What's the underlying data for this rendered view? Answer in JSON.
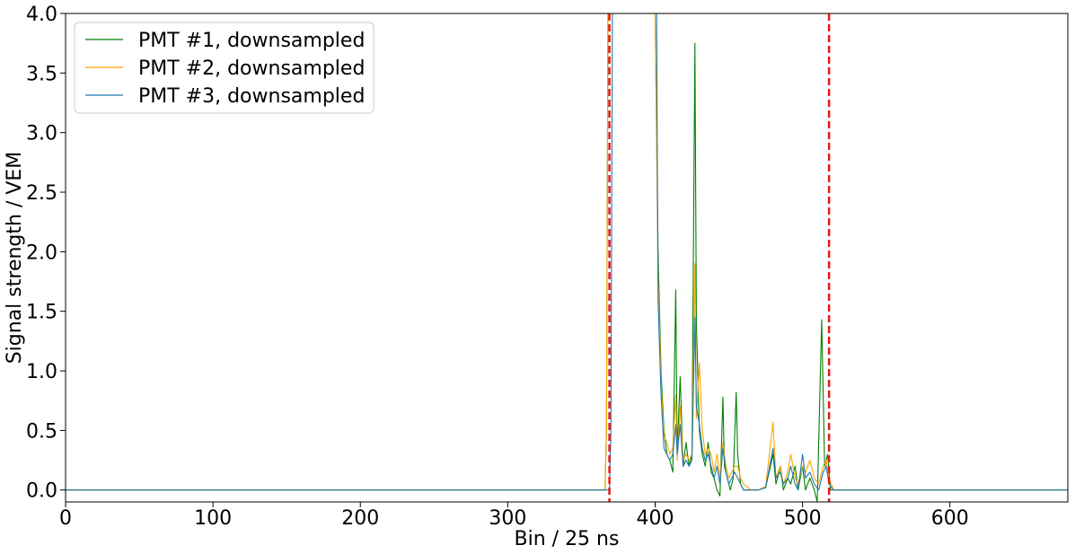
{
  "chart_data": {
    "type": "line",
    "xlabel": "Bin / 25 ns",
    "ylabel": "Signal strength / VEM",
    "xlim": [
      0,
      680
    ],
    "ylim": [
      -0.1,
      4.0
    ],
    "x_ticks": [
      0,
      100,
      200,
      300,
      400,
      500,
      600
    ],
    "x_tick_labels": [
      "0",
      "100",
      "200",
      "300",
      "400",
      "500",
      "600"
    ],
    "y_ticks": [
      0.0,
      0.5,
      1.0,
      1.5,
      2.0,
      2.5,
      3.0,
      3.5,
      4.0
    ],
    "y_tick_labels": [
      "0.0",
      "0.5",
      "1.0",
      "1.5",
      "2.0",
      "2.5",
      "3.0",
      "3.5",
      "4.0"
    ],
    "grid": false,
    "legend_position": "top-left",
    "vlines": [
      {
        "x": 369,
        "color": "#e41a1c",
        "style": "dashed"
      },
      {
        "x": 518,
        "color": "#e41a1c",
        "style": "dashed"
      }
    ],
    "series": [
      {
        "name": "PMT #1, downsampled",
        "color": "#008000",
        "points": [
          [
            0,
            0.0
          ],
          [
            366,
            0.0
          ],
          [
            367,
            0.5
          ],
          [
            368,
            4.0
          ],
          [
            370,
            4.0
          ],
          [
            396,
            4.0
          ],
          [
            400,
            4.0
          ],
          [
            402,
            2.0
          ],
          [
            404,
            1.0
          ],
          [
            406,
            0.5
          ],
          [
            408,
            0.3
          ],
          [
            410,
            0.25
          ],
          [
            412,
            0.15
          ],
          [
            414,
            1.68
          ],
          [
            415,
            0.3
          ],
          [
            417,
            0.95
          ],
          [
            419,
            0.2
          ],
          [
            421,
            0.4
          ],
          [
            423,
            0.2
          ],
          [
            425,
            0.3
          ],
          [
            427,
            3.75
          ],
          [
            428,
            1.4
          ],
          [
            430,
            0.5
          ],
          [
            432,
            0.3
          ],
          [
            434,
            0.2
          ],
          [
            436,
            0.4
          ],
          [
            438,
            0.15
          ],
          [
            440,
            0.1
          ],
          [
            442,
            0.0
          ],
          [
            444,
            -0.05
          ],
          [
            446,
            0.78
          ],
          [
            447,
            0.2
          ],
          [
            449,
            0.1
          ],
          [
            451,
            0.0
          ],
          [
            453,
            0.1
          ],
          [
            455,
            0.82
          ],
          [
            456,
            0.3
          ],
          [
            458,
            0.05
          ],
          [
            460,
            0.0
          ],
          [
            465,
            0.0
          ],
          [
            470,
            0.0
          ],
          [
            475,
            0.02
          ],
          [
            480,
            0.3
          ],
          [
            482,
            0.05
          ],
          [
            485,
            0.2
          ],
          [
            487,
            0.0
          ],
          [
            490,
            0.1
          ],
          [
            492,
            0.05
          ],
          [
            495,
            0.2
          ],
          [
            497,
            0.0
          ],
          [
            500,
            0.2
          ],
          [
            502,
            0.0
          ],
          [
            505,
            0.1
          ],
          [
            508,
            0.0
          ],
          [
            510,
            -0.1
          ],
          [
            513,
            1.43
          ],
          [
            515,
            0.2
          ],
          [
            517,
            0.3
          ],
          [
            519,
            0.0
          ],
          [
            522,
            0.0
          ],
          [
            680,
            0.0
          ]
        ]
      },
      {
        "name": "PMT #2, downsampled",
        "color": "#ffa500",
        "points": [
          [
            0,
            0.0
          ],
          [
            366,
            0.0
          ],
          [
            367,
            0.5
          ],
          [
            368,
            4.0
          ],
          [
            370,
            4.0
          ],
          [
            396,
            4.0
          ],
          [
            400,
            4.0
          ],
          [
            402,
            1.8
          ],
          [
            404,
            0.9
          ],
          [
            406,
            0.45
          ],
          [
            408,
            0.4
          ],
          [
            410,
            0.3
          ],
          [
            412,
            0.35
          ],
          [
            414,
            0.8
          ],
          [
            415,
            0.25
          ],
          [
            417,
            0.7
          ],
          [
            419,
            0.25
          ],
          [
            421,
            0.3
          ],
          [
            423,
            0.25
          ],
          [
            425,
            0.3
          ],
          [
            427,
            1.9
          ],
          [
            428,
            0.6
          ],
          [
            430,
            1.07
          ],
          [
            432,
            0.5
          ],
          [
            434,
            0.3
          ],
          [
            436,
            0.35
          ],
          [
            438,
            0.3
          ],
          [
            440,
            0.15
          ],
          [
            442,
            0.3
          ],
          [
            444,
            0.1
          ],
          [
            446,
            0.4
          ],
          [
            448,
            0.2
          ],
          [
            450,
            0.1
          ],
          [
            452,
            0.15
          ],
          [
            454,
            0.2
          ],
          [
            456,
            0.2
          ],
          [
            458,
            0.1
          ],
          [
            460,
            0.05
          ],
          [
            465,
            0.0
          ],
          [
            470,
            0.0
          ],
          [
            475,
            0.03
          ],
          [
            480,
            0.57
          ],
          [
            482,
            0.1
          ],
          [
            485,
            0.2
          ],
          [
            487,
            0.05
          ],
          [
            490,
            0.15
          ],
          [
            492,
            0.3
          ],
          [
            495,
            0.1
          ],
          [
            497,
            0.05
          ],
          [
            500,
            0.2
          ],
          [
            502,
            0.15
          ],
          [
            505,
            0.25
          ],
          [
            508,
            0.1
          ],
          [
            511,
            0.05
          ],
          [
            514,
            0.2
          ],
          [
            516,
            0.25
          ],
          [
            518,
            0.1
          ],
          [
            521,
            0.0
          ],
          [
            680,
            0.0
          ]
        ]
      },
      {
        "name": "PMT #3, downsampled",
        "color": "#1f77b4",
        "points": [
          [
            0,
            0.0
          ],
          [
            369,
            0.0
          ],
          [
            370,
            0.5
          ],
          [
            371,
            4.0
          ],
          [
            374,
            4.0
          ],
          [
            395,
            4.0
          ],
          [
            397,
            4.0
          ],
          [
            401,
            4.0
          ],
          [
            402,
            1.6
          ],
          [
            404,
            0.8
          ],
          [
            406,
            0.35
          ],
          [
            408,
            0.3
          ],
          [
            410,
            0.25
          ],
          [
            412,
            0.3
          ],
          [
            414,
            0.55
          ],
          [
            415,
            0.3
          ],
          [
            417,
            0.55
          ],
          [
            419,
            0.2
          ],
          [
            421,
            0.25
          ],
          [
            423,
            0.2
          ],
          [
            425,
            0.25
          ],
          [
            427,
            1.45
          ],
          [
            428,
            0.7
          ],
          [
            430,
            0.55
          ],
          [
            432,
            0.35
          ],
          [
            434,
            0.25
          ],
          [
            436,
            0.3
          ],
          [
            438,
            0.2
          ],
          [
            440,
            0.1
          ],
          [
            442,
            0.2
          ],
          [
            444,
            0.05
          ],
          [
            446,
            0.35
          ],
          [
            448,
            0.15
          ],
          [
            450,
            0.05
          ],
          [
            452,
            0.1
          ],
          [
            454,
            0.15
          ],
          [
            456,
            0.1
          ],
          [
            458,
            0.05
          ],
          [
            460,
            0.0
          ],
          [
            465,
            0.0
          ],
          [
            470,
            0.0
          ],
          [
            475,
            0.02
          ],
          [
            480,
            0.35
          ],
          [
            482,
            0.1
          ],
          [
            485,
            0.15
          ],
          [
            487,
            0.05
          ],
          [
            490,
            0.1
          ],
          [
            492,
            0.2
          ],
          [
            495,
            0.05
          ],
          [
            497,
            0.0
          ],
          [
            500,
            0.3
          ],
          [
            502,
            0.1
          ],
          [
            505,
            0.15
          ],
          [
            508,
            0.05
          ],
          [
            511,
            0.0
          ],
          [
            514,
            0.15
          ],
          [
            516,
            0.2
          ],
          [
            518,
            0.05
          ],
          [
            521,
            0.0
          ],
          [
            680,
            0.0
          ]
        ]
      }
    ]
  }
}
